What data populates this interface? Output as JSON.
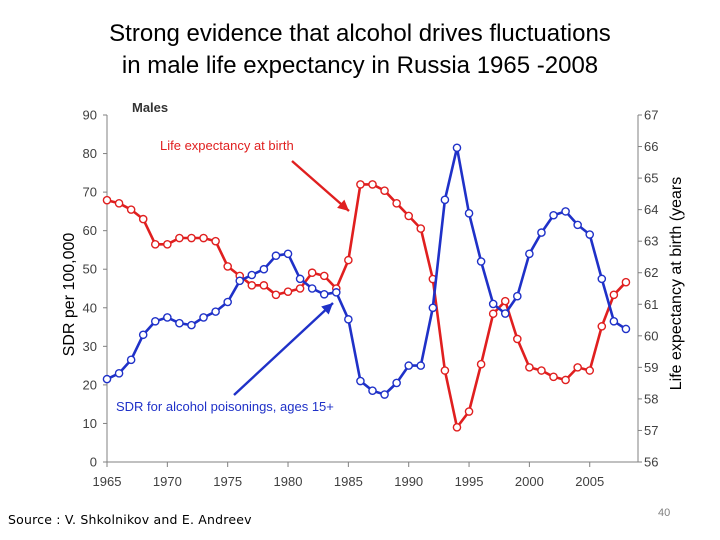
{
  "slide": {
    "title_line1": "Strong evidence that alcohol drives fluctuations",
    "title_line2": "in male life expectancy in Russia 1965 -2008",
    "source": "Source : V. Shkolnikov and E. Andreev",
    "page_number": "40"
  },
  "chart_data": {
    "type": "line",
    "panel_label": "Males",
    "x_ticks": [
      1965,
      1970,
      1975,
      1980,
      1985,
      1990,
      1995,
      2000,
      2005
    ],
    "xlim": [
      1965,
      2009
    ],
    "left_axis": {
      "label": "SDR per 100,000",
      "ylim": [
        0,
        90
      ],
      "ticks": [
        0,
        10,
        20,
        30,
        40,
        50,
        60,
        70,
        80,
        90
      ]
    },
    "right_axis": {
      "label": "Life expectancy at birth (years",
      "ylim": [
        56,
        67
      ],
      "ticks": [
        56,
        57,
        58,
        59,
        60,
        61,
        62,
        63,
        64,
        65,
        66,
        67
      ]
    },
    "colors": {
      "alcohol": "#1f31c8",
      "life_expectancy": "#e01f1f",
      "axis": "#808080",
      "text": "#404040"
    },
    "series": [
      {
        "name": "Life expectancy at birth",
        "axis": "right",
        "annotation": "Life expectancy at birth",
        "x": [
          1965,
          1966,
          1967,
          1968,
          1969,
          1970,
          1971,
          1972,
          1973,
          1974,
          1975,
          1976,
          1977,
          1978,
          1979,
          1980,
          1981,
          1982,
          1983,
          1984,
          1985,
          1986,
          1987,
          1988,
          1989,
          1990,
          1991,
          1992,
          1993,
          1994,
          1995,
          1996,
          1997,
          1998,
          1999,
          2000,
          2001,
          2002,
          2003,
          2004,
          2005,
          2006,
          2007,
          2008
        ],
        "values": [
          64.3,
          64.2,
          64.0,
          63.7,
          62.9,
          62.9,
          63.1,
          63.1,
          63.1,
          63.0,
          62.2,
          61.9,
          61.6,
          61.6,
          61.3,
          61.4,
          61.5,
          62.0,
          61.9,
          61.5,
          62.4,
          64.8,
          64.8,
          64.6,
          64.2,
          63.8,
          63.4,
          61.8,
          58.9,
          57.1,
          57.6,
          59.1,
          60.7,
          61.1,
          59.9,
          59.0,
          58.9,
          58.7,
          58.6,
          59.0,
          58.9,
          60.3,
          61.3,
          61.7
        ]
      },
      {
        "name": "SDR for alcohol poisonings, ages 15+",
        "axis": "left",
        "annotation": "SDR for alcohol poisonings, ages 15+",
        "x": [
          1965,
          1966,
          1967,
          1968,
          1969,
          1970,
          1971,
          1972,
          1973,
          1974,
          1975,
          1976,
          1977,
          1978,
          1979,
          1980,
          1981,
          1982,
          1983,
          1984,
          1985,
          1986,
          1987,
          1988,
          1989,
          1990,
          1991,
          1992,
          1993,
          1994,
          1995,
          1996,
          1997,
          1998,
          1999,
          2000,
          2001,
          2002,
          2003,
          2004,
          2005,
          2006,
          2007,
          2008
        ],
        "values": [
          21.5,
          23.0,
          26.5,
          33.0,
          36.5,
          37.5,
          36.0,
          35.5,
          37.5,
          39.0,
          41.5,
          47.0,
          48.5,
          50.0,
          53.5,
          54.0,
          47.5,
          45.0,
          43.5,
          44.0,
          37.0,
          21.0,
          18.5,
          17.5,
          20.5,
          25.0,
          25.0,
          40.0,
          68.0,
          81.5,
          64.5,
          52.0,
          41.0,
          38.5,
          43.0,
          54.0,
          59.5,
          64.0,
          65.0,
          61.5,
          59.0,
          47.5,
          36.5,
          34.5
        ]
      }
    ]
  }
}
